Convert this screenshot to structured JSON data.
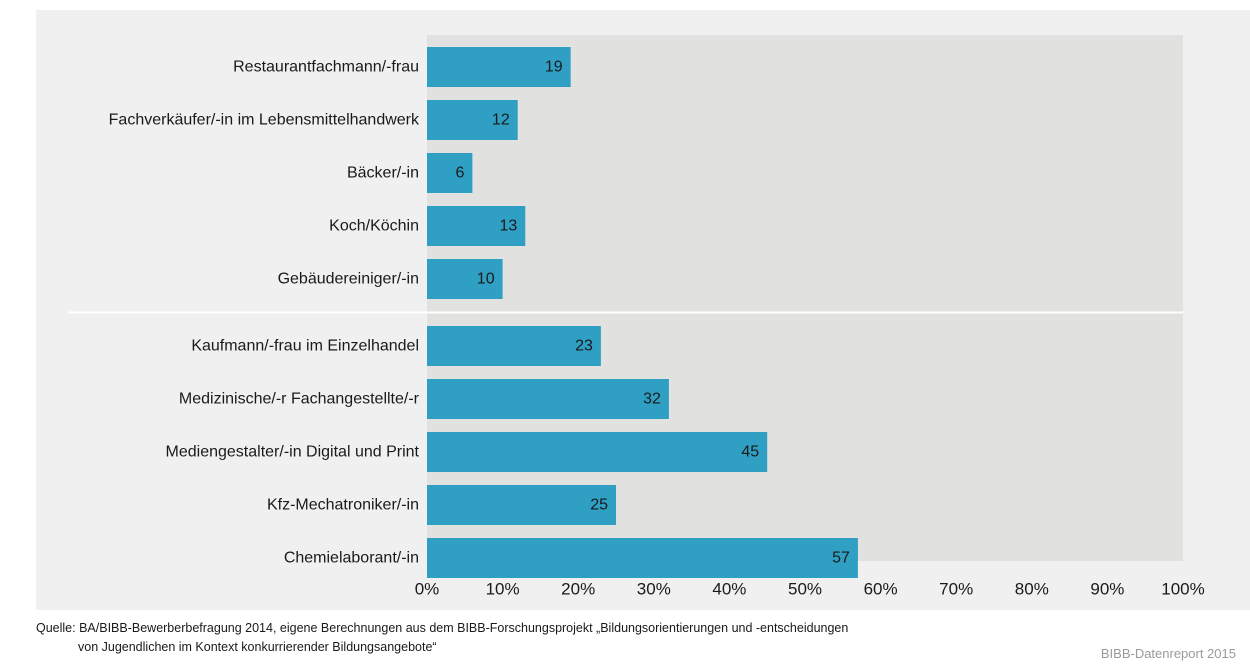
{
  "chart_data": {
    "type": "bar",
    "orientation": "horizontal",
    "categories": [
      "Restaurantfachmann/-frau",
      "Fachverkäufer/-in im Lebensmittelhandwerk",
      "Bäcker/-in",
      "Koch/Köchin",
      "Gebäudereiniger/-in",
      "Kaufmann/-frau im Einzelhandel",
      "Medizinische/-r Fachangestellte/-r",
      "Mediengestalter/-in Digital und Print",
      "Kfz-Mechatroniker/-in",
      "Chemielaborant/-in"
    ],
    "values": [
      19,
      12,
      6,
      13,
      10,
      23,
      32,
      45,
      25,
      57
    ],
    "data_labels": [
      "19",
      "12",
      "6",
      "13",
      "10",
      "23",
      "32",
      "45",
      "25",
      "57"
    ],
    "group_separator_after_index": 4,
    "xlim": [
      0,
      100
    ],
    "xticks": [
      "0%",
      "10%",
      "20%",
      "30%",
      "40%",
      "50%",
      "60%",
      "70%",
      "80%",
      "90%",
      "100%"
    ],
    "title": "",
    "xlabel": "",
    "ylabel": "",
    "grid": false,
    "colors": {
      "bar": "#2f9fc4",
      "plot_background": "#e1e1df",
      "chart_background": "#f0f0f0"
    }
  },
  "source": {
    "line1": "Quelle: BA/BIBB-Bewerberbefragung 2014, eigene Berechnungen aus dem BIBB-Forschungsprojekt „Bildungsorientierungen und -entscheidungen",
    "line2": "von Jugendlichen im Kontext konkurrierender Bildungsangebote“"
  },
  "credit": "BIBB-Datenreport 2015"
}
